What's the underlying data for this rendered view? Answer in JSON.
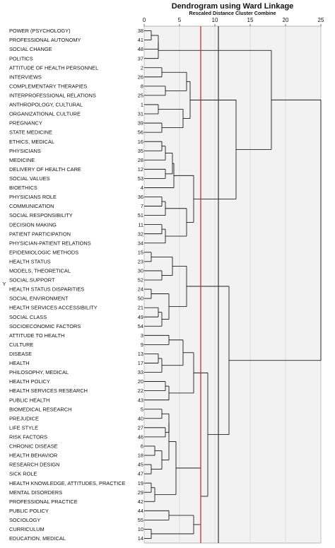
{
  "chart_data": {
    "type": "dendrogram",
    "title": "Dendrogram using Ward Linkage",
    "subtitle": "Rescaled Distance Cluster Combine",
    "ylabel": "Y",
    "x_ticks": [
      "0",
      "5",
      "10",
      "15",
      "20",
      "25"
    ],
    "x_tick_values": [
      0,
      5,
      10,
      15,
      20,
      25
    ],
    "xlim": [
      0,
      25
    ],
    "cut_lines": [
      {
        "x": 8.0,
        "color": "#cc2222"
      },
      {
        "x": 10.5,
        "color": "#333333"
      }
    ],
    "leaves": [
      {
        "label": "POWER (PSYCHOLOGY)",
        "id": "38"
      },
      {
        "label": "PROFESSIONAL AUTONOMY",
        "id": "41"
      },
      {
        "label": "SOCIAL CHANGE",
        "id": "48"
      },
      {
        "label": "POLITICS",
        "id": "37"
      },
      {
        "label": "ATTITUDE OF HEALTH PERSONNEL",
        "id": "2"
      },
      {
        "label": "INTERVIEWS",
        "id": "26"
      },
      {
        "label": "COMPLEMENTARY THERAPIES",
        "id": "8"
      },
      {
        "label": "INTERPROFESSIONAL RELATIONS",
        "id": "25"
      },
      {
        "label": "ANTHROPOLOGY, CULTURAL",
        "id": "1"
      },
      {
        "label": "ORGANIZATIONAL CULTURE",
        "id": "31"
      },
      {
        "label": "PREGNANCY",
        "id": "39"
      },
      {
        "label": "STATE MEDICINE",
        "id": "56"
      },
      {
        "label": "ETHICS, MEDICAL",
        "id": "16"
      },
      {
        "label": "PHYSICIANS",
        "id": "35"
      },
      {
        "label": "MEDICINE",
        "id": "28"
      },
      {
        "label": "DELIVERY OF HEALTH CARE",
        "id": "12"
      },
      {
        "label": "SOCIAL VALUES",
        "id": "53"
      },
      {
        "label": "BIOETHICS",
        "id": "4"
      },
      {
        "label": "PHYSICIANS ROLE",
        "id": "36"
      },
      {
        "label": "COMMUNICATION",
        "id": "7"
      },
      {
        "label": "SOCIAL RESPONSIBILITY",
        "id": "51"
      },
      {
        "label": "DECISION MAKING",
        "id": "11"
      },
      {
        "label": "PATIENT PARTICIPATION",
        "id": "32"
      },
      {
        "label": "PHYSICIAN-PATIENT RELATIONS",
        "id": "34"
      },
      {
        "label": "EPIDEMIOLOGIC METHODS",
        "id": "15"
      },
      {
        "label": "HEALTH STATUS",
        "id": "23"
      },
      {
        "label": "MODELS, THEORETICAL",
        "id": "30"
      },
      {
        "label": "SOCIAL SUPPORT",
        "id": "52"
      },
      {
        "label": "HEALTH STATUS DISPARITIES",
        "id": "24"
      },
      {
        "label": "SOCIAL ENVIRONMENT",
        "id": "50"
      },
      {
        "label": "HEALTH SERVICES ACCESSIBILITY",
        "id": "21"
      },
      {
        "label": "SOCIAL CLASS",
        "id": "49"
      },
      {
        "label": "SOCIOECONOMIC FACTORS",
        "id": "54"
      },
      {
        "label": "ATTITUDE TO HEALTH",
        "id": "3"
      },
      {
        "label": "CULTURE",
        "id": "9"
      },
      {
        "label": "DISEASE",
        "id": "13"
      },
      {
        "label": "HEALTH",
        "id": "17"
      },
      {
        "label": "PHILOSOPHY, MEDICAL",
        "id": "33"
      },
      {
        "label": "HEALTH POLICY",
        "id": "20"
      },
      {
        "label": "HEALTH SERVICES RESEARCH",
        "id": "22"
      },
      {
        "label": "PUBLIC HEALTH",
        "id": "43"
      },
      {
        "label": "BIOMEDICAL RESEARCH",
        "id": "5"
      },
      {
        "label": "PREJUDICE",
        "id": "40"
      },
      {
        "label": "LIFE STYLE",
        "id": "27"
      },
      {
        "label": "RISK FACTORS",
        "id": "46"
      },
      {
        "label": "CHRONIC DISEASE",
        "id": "6"
      },
      {
        "label": "HEALTH BEHAVIOR",
        "id": "18"
      },
      {
        "label": "RESEARCH DESIGN",
        "id": "45"
      },
      {
        "label": "SICK ROLE",
        "id": "47"
      },
      {
        "label": "HEALTH KNOWLEDGE, ATTITUDES, PRACTICE",
        "id": "19"
      },
      {
        "label": "MENTAL DISORDERS",
        "id": "29"
      },
      {
        "label": "PROFESSIONAL PRACTICE",
        "id": "42"
      },
      {
        "label": "PUBLIC POLICY",
        "id": "44"
      },
      {
        "label": "SOCIOLOGY",
        "id": "55"
      },
      {
        "label": "CURRICULUM",
        "id": "10"
      },
      {
        "label": "EDUCATION, MEDICAL",
        "id": "14"
      }
    ],
    "merges": [
      {
        "a": 0,
        "b": 1,
        "height": 1.0
      },
      {
        "a": -1,
        "b": 2,
        "height": 2.0
      },
      {
        "a": -2,
        "b": 3,
        "height": 2.0
      },
      {
        "a": 4,
        "b": 5,
        "height": 2.5
      },
      {
        "a": 6,
        "b": 7,
        "height": 3.0
      },
      {
        "a": -4,
        "b": -5,
        "height": 6.0
      },
      {
        "a": 8,
        "b": 9,
        "height": 2.0
      },
      {
        "a": 10,
        "b": 11,
        "height": 2.5
      },
      {
        "a": -7,
        "b": -8,
        "height": 5.5
      },
      {
        "a": -6,
        "b": -9,
        "height": 6.5
      },
      {
        "a": 12,
        "b": 13,
        "height": 2.5
      },
      {
        "a": -11,
        "b": 14,
        "height": 3.0
      },
      {
        "a": 15,
        "b": 16,
        "height": 3.0
      },
      {
        "a": -12,
        "b": -13,
        "height": 4.0
      },
      {
        "a": -14,
        "b": 17,
        "height": 4.2
      },
      {
        "a": 18,
        "b": 19,
        "height": 2.5
      },
      {
        "a": -16,
        "b": 20,
        "height": 3.0
      },
      {
        "a": 21,
        "b": 22,
        "height": 2.5
      },
      {
        "a": -18,
        "b": 23,
        "height": 3.0
      },
      {
        "a": -17,
        "b": -19,
        "height": 6.0
      },
      {
        "a": -15,
        "b": -20,
        "height": 7.0
      },
      {
        "a": -10,
        "b": -21,
        "height": 13.0
      },
      {
        "a": -3,
        "b": -22,
        "height": 18.0
      },
      {
        "a": 24,
        "b": 25,
        "height": 1.0
      },
      {
        "a": 26,
        "b": 27,
        "height": 2.5
      },
      {
        "a": -24,
        "b": -25,
        "height": 4.0
      },
      {
        "a": 28,
        "b": 29,
        "height": 1.0
      },
      {
        "a": 30,
        "b": 31,
        "height": 2.0
      },
      {
        "a": -28,
        "b": 32,
        "height": 2.5
      },
      {
        "a": -27,
        "b": -29,
        "height": 3.5
      },
      {
        "a": -26,
        "b": -30,
        "height": 6.0
      },
      {
        "a": 33,
        "b": 34,
        "height": 3.5
      },
      {
        "a": 35,
        "b": 36,
        "height": 2.0
      },
      {
        "a": -33,
        "b": 37,
        "height": 2.5
      },
      {
        "a": -32,
        "b": -34,
        "height": 5.5
      },
      {
        "a": 38,
        "b": 39,
        "height": 3.0
      },
      {
        "a": -36,
        "b": 40,
        "height": 3.5
      },
      {
        "a": -35,
        "b": -37,
        "height": 7.0
      },
      {
        "a": 41,
        "b": 42,
        "height": 2.5
      },
      {
        "a": 43,
        "b": 44,
        "height": 3.0
      },
      {
        "a": -39,
        "b": -40,
        "height": 3.5
      },
      {
        "a": 45,
        "b": 46,
        "height": 1.5
      },
      {
        "a": 47,
        "b": 48,
        "height": 1.0
      },
      {
        "a": -42,
        "b": -43,
        "height": 2.5
      },
      {
        "a": -41,
        "b": -44,
        "height": 3.5
      },
      {
        "a": 49,
        "b": 50,
        "height": 1.0
      },
      {
        "a": 51,
        "b": -46,
        "height": 1.5
      },
      {
        "a": -45,
        "b": -47,
        "height": 4.5
      },
      {
        "a": 52,
        "b": 53,
        "height": 3.5
      },
      {
        "a": 54,
        "b": 55,
        "height": 1.0
      },
      {
        "a": -49,
        "b": -50,
        "height": 7.0
      },
      {
        "a": -48,
        "b": -51,
        "height": 8.0
      },
      {
        "a": -38,
        "b": -52,
        "height": 9.0
      },
      {
        "a": -31,
        "b": -53,
        "height": 12.0
      },
      {
        "a": -23,
        "b": -54,
        "height": 25.0
      }
    ]
  }
}
